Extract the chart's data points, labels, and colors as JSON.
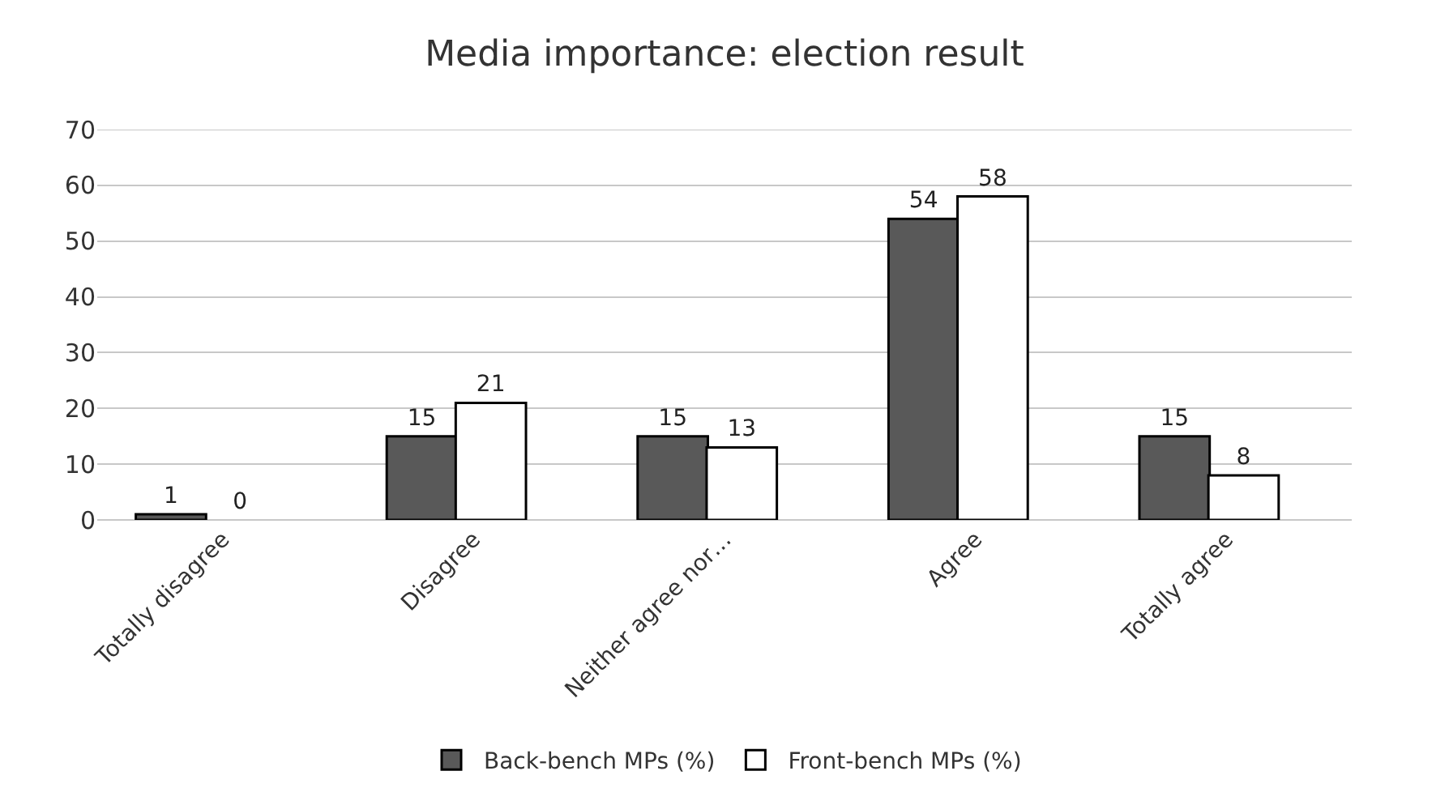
{
  "chart_data": {
    "type": "bar",
    "title": "Media importance: election result",
    "categories": [
      "Totally disagree",
      "Disagree",
      "Neither agree nor…",
      "Agree",
      "Totally agree"
    ],
    "series": [
      {
        "name": "Back-bench MPs (%)",
        "color": "#595959",
        "values": [
          1,
          15,
          15,
          54,
          15
        ]
      },
      {
        "name": "Front-bench MPs (%)",
        "color": "#ffffff",
        "values": [
          0,
          21,
          13,
          58,
          8
        ]
      }
    ],
    "ylim": [
      0,
      70
    ],
    "yticks": [
      0,
      10,
      20,
      30,
      40,
      50,
      60,
      70
    ],
    "grid": "y",
    "legend": "bottom",
    "data_labels": true
  }
}
